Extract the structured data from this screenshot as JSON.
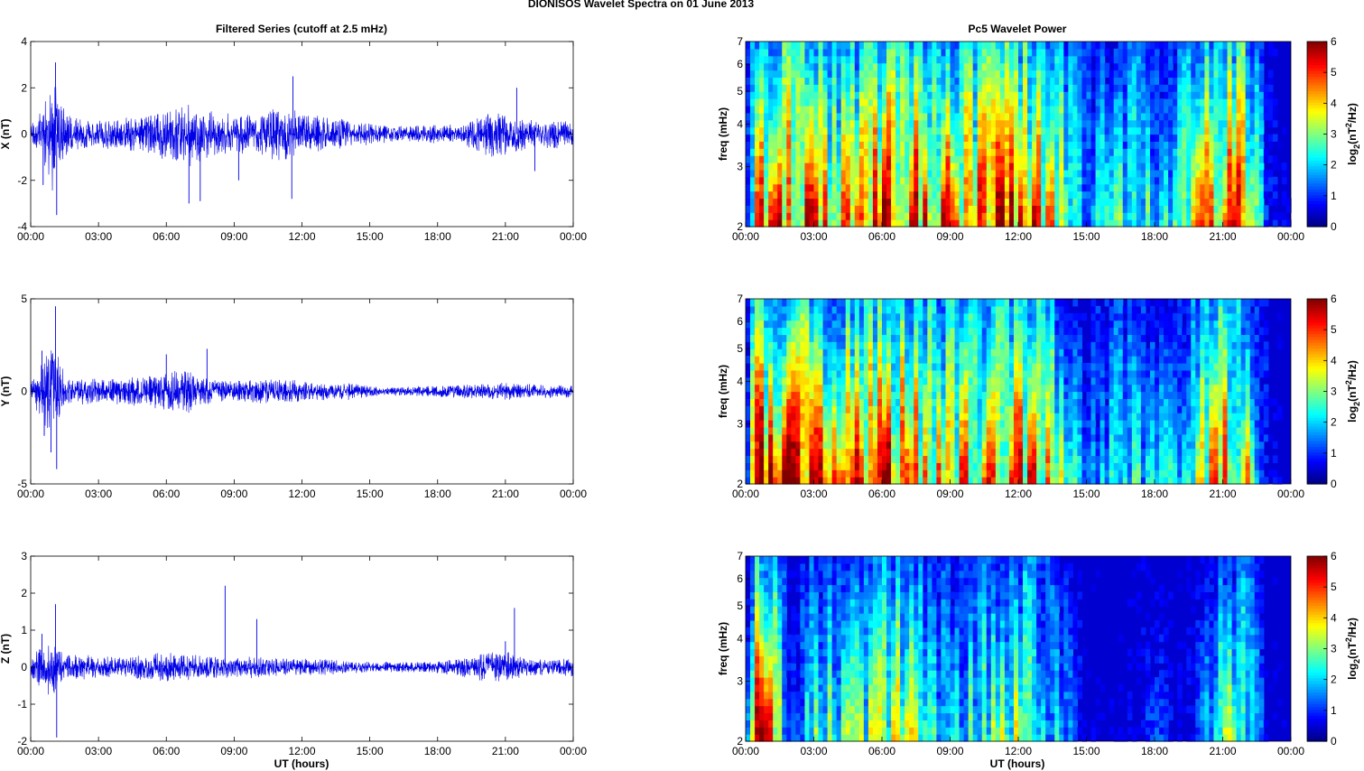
{
  "figure": {
    "suptitle": "DIONISOS Wavelet Spectra on 01 June      2013",
    "left_title": "Filtered Series (cutoff at 2.5 mHz)",
    "right_title": "Pc5 Wavelet Power",
    "xlabel": "UT (hours)",
    "colorbar_label": "log2(nT2/Hz)",
    "colorbar_ticks": [
      "0",
      "1",
      "2",
      "3",
      "4",
      "5",
      "6"
    ],
    "time_ticks": [
      "00:00",
      "03:00",
      "06:00",
      "09:00",
      "12:00",
      "15:00",
      "18:00",
      "21:00",
      "00:00"
    ],
    "freq_label": "freq (mHz)",
    "freq_ticks": [
      "2",
      "3",
      "4",
      "5",
      "6",
      "7"
    ]
  },
  "chart_data": [
    {
      "type": "line",
      "component": "X",
      "ylabel": "X (nT)",
      "ylim": [
        -4,
        4
      ],
      "yticks": [
        "-4",
        "-2",
        "0",
        "2",
        "4"
      ],
      "xlim_hours": [
        0,
        24
      ],
      "envelope_hours": [
        0,
        0.5,
        1,
        1.5,
        2,
        3,
        4,
        5,
        6,
        7,
        8,
        9,
        10,
        11,
        12,
        13,
        14,
        15,
        16,
        17,
        18,
        19,
        20,
        21,
        22,
        23,
        24
      ],
      "envelope_amplitude_nT": [
        0.4,
        0.9,
        2.2,
        0.8,
        0.6,
        0.5,
        0.6,
        0.7,
        1.0,
        1.2,
        0.9,
        0.7,
        0.8,
        1.0,
        0.8,
        0.7,
        0.5,
        0.4,
        0.3,
        0.3,
        0.35,
        0.35,
        0.8,
        0.9,
        0.5,
        0.6,
        0.4
      ],
      "spikes": [
        {
          "t": 1.1,
          "v": 3.1
        },
        {
          "t": 1.15,
          "v": -3.5
        },
        {
          "t": 0.55,
          "v": -2.2
        },
        {
          "t": 7.5,
          "v": -2.9
        },
        {
          "t": 7.0,
          "v": -3.0
        },
        {
          "t": 11.6,
          "v": 2.5
        },
        {
          "t": 11.55,
          "v": -2.8
        },
        {
          "t": 9.2,
          "v": -2.0
        },
        {
          "t": 21.5,
          "v": 2.0
        },
        {
          "t": 22.3,
          "v": -1.6
        }
      ]
    },
    {
      "type": "line",
      "component": "Y",
      "ylabel": "Y (nT)",
      "ylim": [
        -5,
        5
      ],
      "yticks": [
        "-5",
        "0",
        "5"
      ],
      "xlim_hours": [
        0,
        24
      ],
      "envelope_hours": [
        0,
        0.5,
        1,
        1.5,
        2,
        3,
        4,
        5,
        6,
        7,
        8,
        9,
        10,
        11,
        12,
        13,
        14,
        15,
        16,
        17,
        18,
        19,
        20,
        21,
        22,
        23,
        24
      ],
      "envelope_amplitude_nT": [
        0.3,
        1.5,
        2.5,
        0.8,
        0.6,
        0.6,
        0.6,
        0.7,
        0.9,
        1.0,
        0.6,
        0.5,
        0.6,
        0.6,
        0.5,
        0.4,
        0.4,
        0.25,
        0.2,
        0.25,
        0.25,
        0.3,
        0.35,
        0.4,
        0.35,
        0.3,
        0.3
      ],
      "spikes": [
        {
          "t": 1.1,
          "v": 4.6
        },
        {
          "t": 1.15,
          "v": -4.2
        },
        {
          "t": 0.5,
          "v": 2.2
        },
        {
          "t": 0.6,
          "v": -2.4
        },
        {
          "t": 0.9,
          "v": -3.3
        },
        {
          "t": 6.0,
          "v": 2.0
        },
        {
          "t": 7.8,
          "v": 2.3
        }
      ]
    },
    {
      "type": "line",
      "component": "Z",
      "ylabel": "Z (nT)",
      "ylim": [
        -2,
        3
      ],
      "yticks": [
        "-2",
        "-1",
        "0",
        "1",
        "2",
        "3"
      ],
      "xlim_hours": [
        0,
        24
      ],
      "envelope_hours": [
        0,
        0.5,
        1,
        1.5,
        2,
        3,
        4,
        5,
        6,
        7,
        8,
        9,
        10,
        11,
        12,
        13,
        14,
        15,
        16,
        17,
        18,
        19,
        20,
        21,
        22,
        23,
        24
      ],
      "envelope_amplitude_nT": [
        0.2,
        0.6,
        0.8,
        0.3,
        0.3,
        0.25,
        0.25,
        0.3,
        0.35,
        0.3,
        0.25,
        0.25,
        0.25,
        0.2,
        0.2,
        0.2,
        0.15,
        0.12,
        0.12,
        0.12,
        0.15,
        0.2,
        0.35,
        0.4,
        0.2,
        0.2,
        0.2
      ],
      "spikes": [
        {
          "t": 1.1,
          "v": 1.7
        },
        {
          "t": 1.15,
          "v": -1.9
        },
        {
          "t": 0.5,
          "v": 0.9
        },
        {
          "t": 8.6,
          "v": 2.2
        },
        {
          "t": 10.0,
          "v": 1.3
        },
        {
          "t": 21.4,
          "v": 1.6
        },
        {
          "t": 21.0,
          "v": 0.7
        }
      ]
    },
    {
      "type": "heatmap",
      "component": "X",
      "title": "Pc5 Wavelet Power",
      "ylabel": "freq (mHz)",
      "ylim_mHz": [
        2,
        7
      ],
      "yscale": "log",
      "clim": [
        0,
        6
      ],
      "colormap": "jet",
      "activity_hours": [
        0,
        0.5,
        1,
        2,
        3,
        4,
        5,
        6,
        7,
        8,
        9,
        10,
        11,
        12,
        13,
        14,
        15,
        16,
        17,
        18,
        19,
        20,
        21,
        22,
        23,
        24
      ],
      "activity_log2": [
        1.5,
        4.5,
        5.8,
        5.5,
        5.0,
        4.5,
        4.6,
        5.8,
        5.8,
        5.4,
        5.2,
        5.0,
        5.5,
        5.6,
        5.2,
        3.8,
        2.0,
        2.6,
        3.0,
        2.6,
        2.8,
        4.6,
        5.5,
        5.4,
        1.0,
        0.3
      ]
    },
    {
      "type": "heatmap",
      "component": "Y",
      "title": "",
      "ylabel": "freq (mHz)",
      "ylim_mHz": [
        2,
        7
      ],
      "yscale": "log",
      "clim": [
        0,
        6
      ],
      "colormap": "jet",
      "activity_hours": [
        0,
        0.5,
        1,
        2,
        3,
        4,
        5,
        6,
        7,
        8,
        9,
        10,
        11,
        12,
        13,
        14,
        15,
        16,
        17,
        18,
        19,
        20,
        21,
        22,
        23,
        24
      ],
      "activity_log2": [
        1.0,
        5.8,
        6.0,
        5.6,
        5.2,
        5.0,
        5.2,
        5.6,
        5.4,
        4.6,
        4.4,
        4.8,
        4.6,
        5.2,
        4.8,
        3.2,
        1.4,
        2.2,
        2.6,
        2.0,
        2.4,
        3.8,
        5.0,
        4.6,
        0.8,
        0.2
      ]
    },
    {
      "type": "heatmap",
      "component": "Z",
      "title": "",
      "ylabel": "freq (mHz)",
      "ylim_mHz": [
        2,
        7
      ],
      "yscale": "log",
      "clim": [
        0,
        6
      ],
      "colormap": "jet",
      "activity_hours": [
        0,
        0.5,
        1,
        2,
        3,
        4,
        5,
        6,
        7,
        8,
        9,
        10,
        11,
        12,
        13,
        14,
        15,
        16,
        17,
        18,
        19,
        20,
        21,
        22,
        23,
        24
      ],
      "activity_log2": [
        0.5,
        5.5,
        5.5,
        1.0,
        2.8,
        3.0,
        3.0,
        3.6,
        4.2,
        2.6,
        2.2,
        2.8,
        3.2,
        3.6,
        3.0,
        1.8,
        0.5,
        0.4,
        0.6,
        1.2,
        0.4,
        1.2,
        3.2,
        3.0,
        0.5,
        0.2
      ]
    }
  ]
}
